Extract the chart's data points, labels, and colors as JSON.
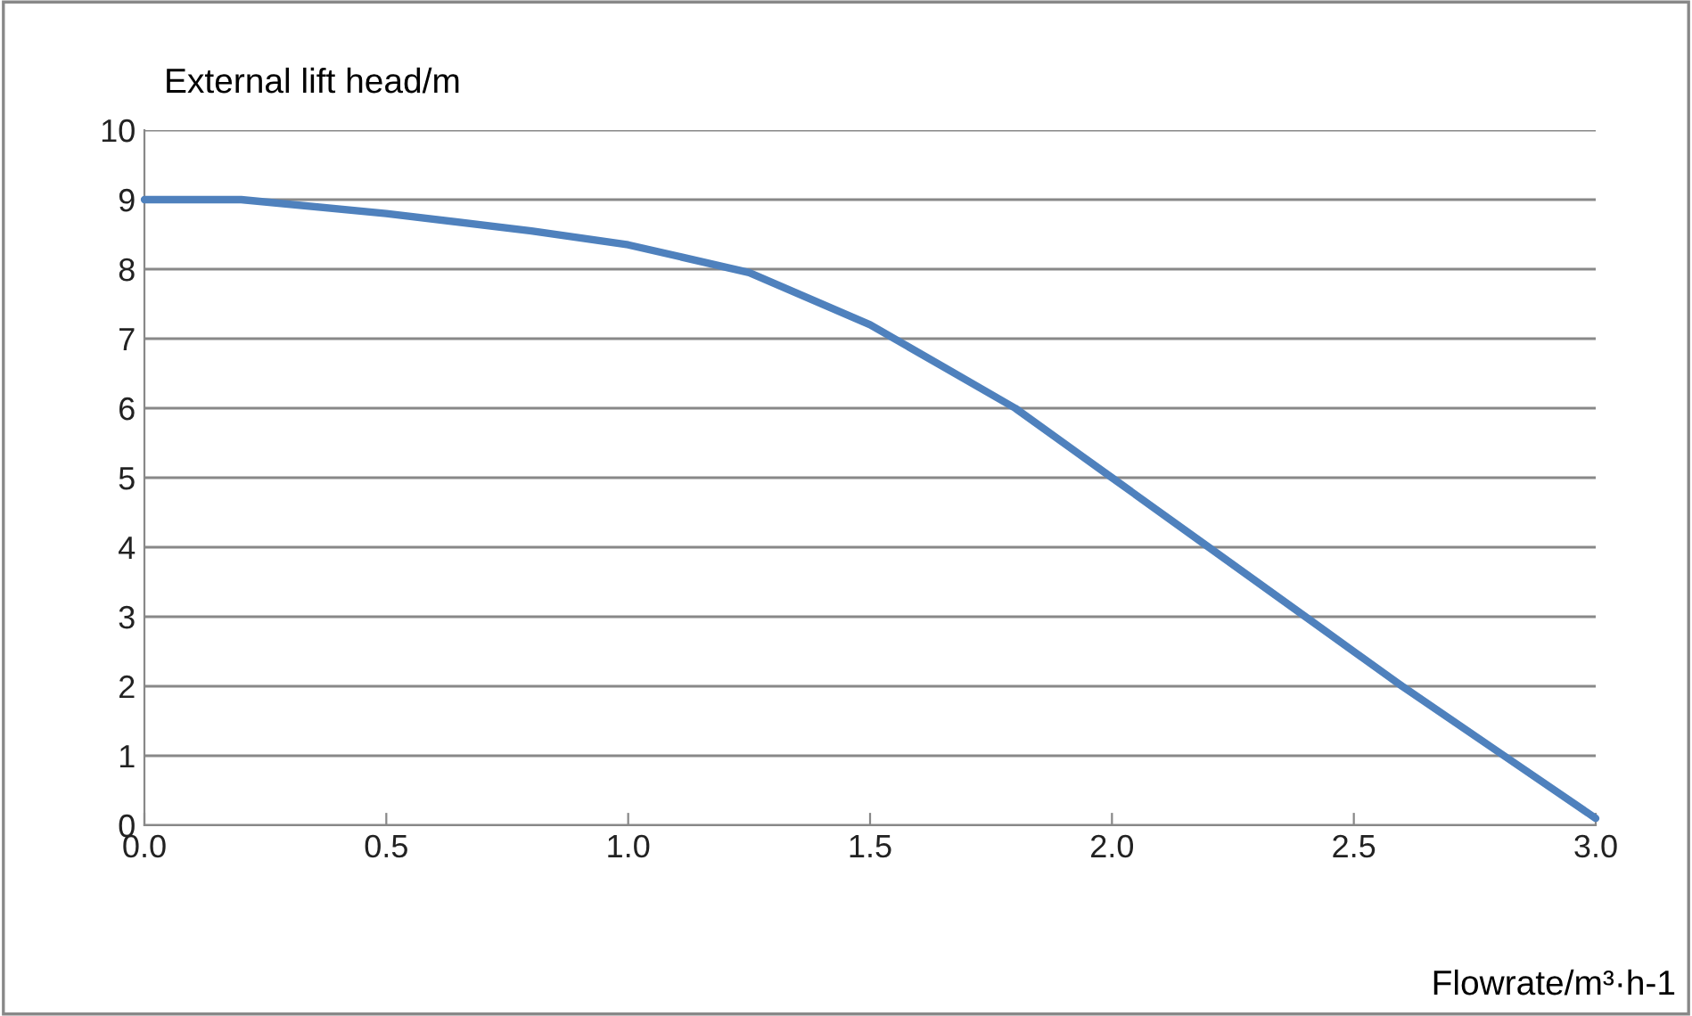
{
  "chart_data": {
    "type": "line",
    "xlabel": "Flowrate/m³·h-1",
    "ylabel": "External lift head/m",
    "x": [
      0,
      0.2,
      0.5,
      0.8,
      1.0,
      1.25,
      1.5,
      1.65,
      1.8,
      2.0,
      2.2,
      2.4,
      2.6,
      2.8,
      3.0
    ],
    "series": [
      {
        "color": "#4f81bd",
        "values": [
          9.0,
          9.0,
          8.8,
          8.55,
          8.35,
          7.95,
          7.2,
          6.6,
          6.0,
          5.0,
          4.0,
          3.0,
          2.0,
          1.05,
          0.1
        ]
      }
    ],
    "xlim": [
      0,
      3
    ],
    "ylim": [
      0,
      10
    ],
    "xticks": [
      {
        "value": 0,
        "label": "0.0"
      },
      {
        "value": 0.5,
        "label": "0.5"
      },
      {
        "value": 1,
        "label": "1.0"
      },
      {
        "value": 1.5,
        "label": "1.5"
      },
      {
        "value": 2,
        "label": "2.0"
      },
      {
        "value": 2.5,
        "label": "2.5"
      },
      {
        "value": 3,
        "label": "3.0"
      }
    ],
    "yticks": [
      0,
      1,
      2,
      3,
      4,
      5,
      6,
      7,
      8,
      9,
      10
    ],
    "grid": "y",
    "legend": false,
    "marker": "none",
    "line_style": "solid"
  }
}
